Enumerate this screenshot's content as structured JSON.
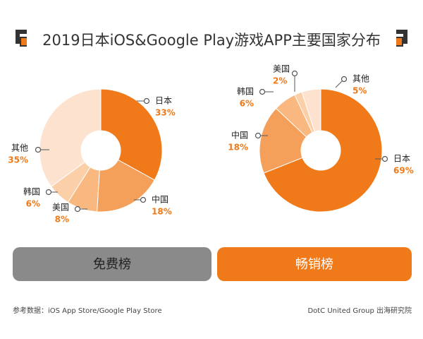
{
  "title": "2019日本iOS&Google Play游戏APP主要国家分布",
  "chart_data": [
    {
      "type": "pie",
      "title": "免费榜",
      "categories": [
        "日本",
        "中国",
        "美国",
        "韩国",
        "其他"
      ],
      "values": [
        33,
        18,
        8,
        6,
        35
      ],
      "value_labels": [
        "33%",
        "18%",
        "8%",
        "6%",
        "35%"
      ],
      "colors": [
        "#f07a1a",
        "#f5a05a",
        "#f8b880",
        "#fbcfa8",
        "#fde3cf"
      ]
    },
    {
      "type": "pie",
      "title": "畅销榜",
      "categories": [
        "日本",
        "中国",
        "韩国",
        "美国",
        "其他"
      ],
      "values": [
        69,
        18,
        6,
        2,
        5
      ],
      "value_labels": [
        "69%",
        "18%",
        "6%",
        "2%",
        "5%"
      ],
      "colors": [
        "#f07a1a",
        "#f5a05a",
        "#f8b880",
        "#fbcfa8",
        "#fde3cf"
      ]
    }
  ],
  "source": "参考数据：iOS App Store/Google Play Store",
  "credit": "DotC United Group 出海研究院"
}
